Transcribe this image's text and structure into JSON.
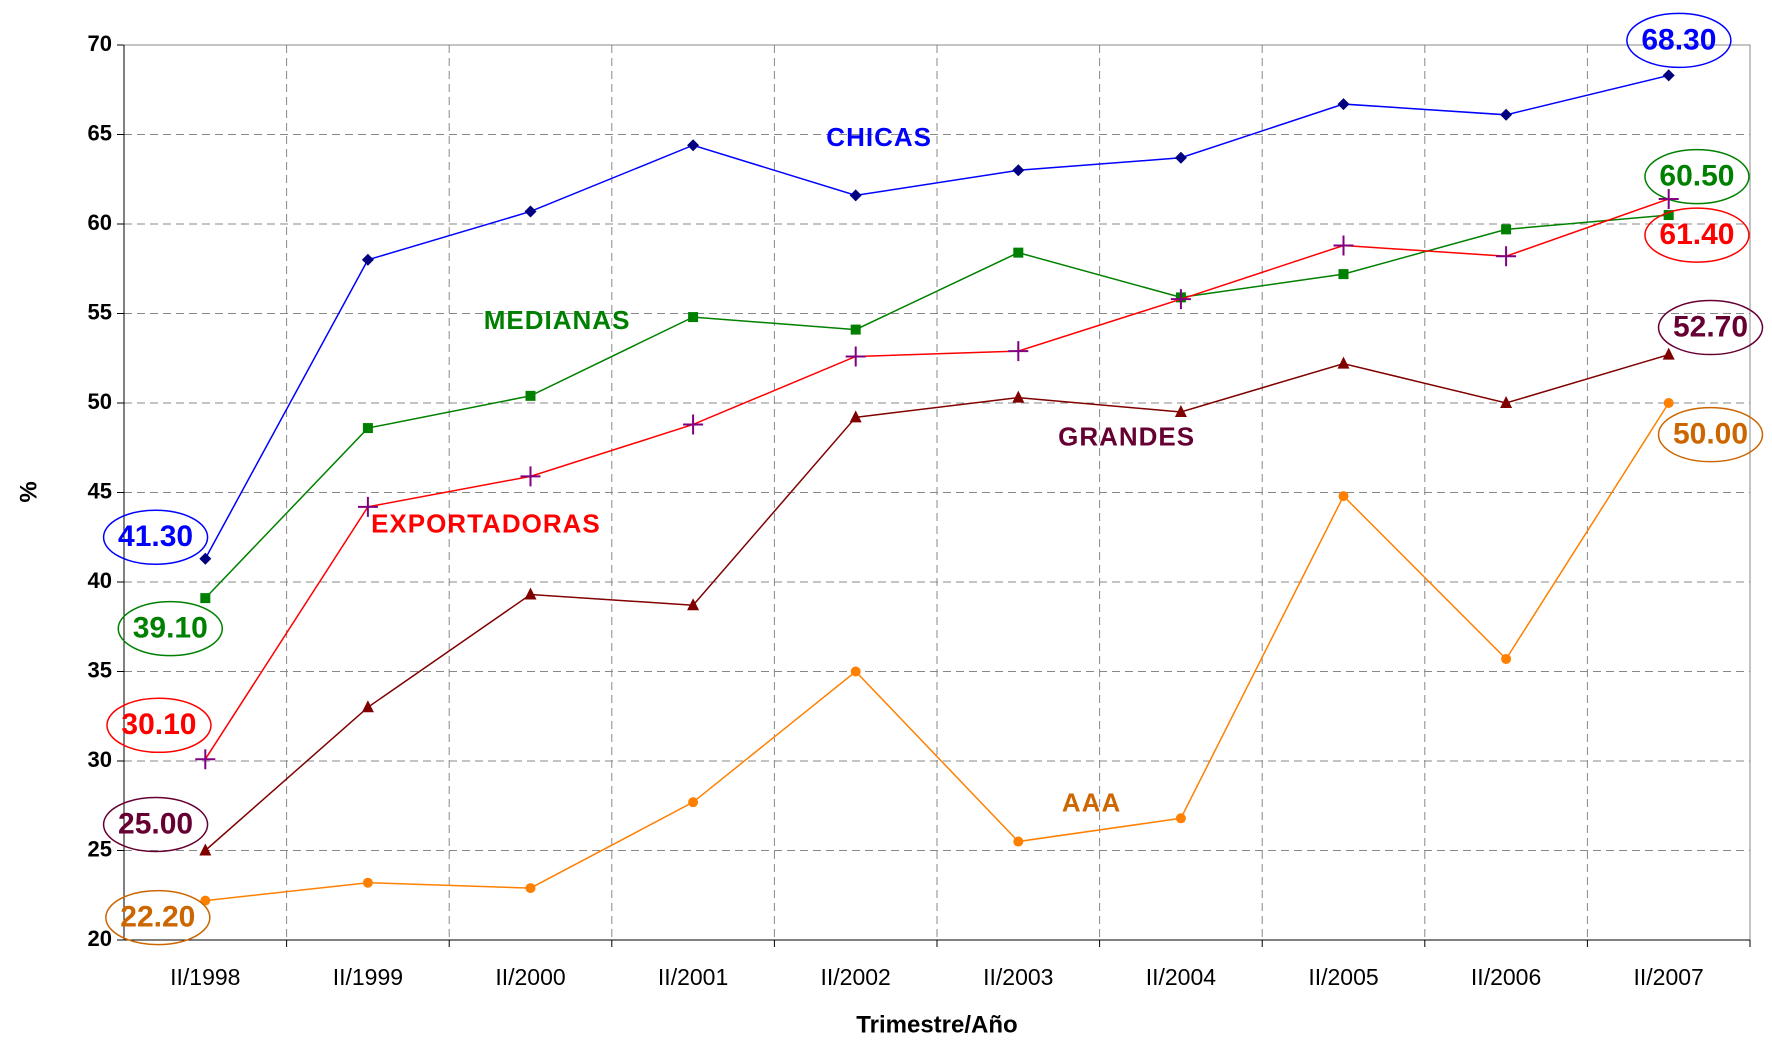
{
  "chart_data": {
    "type": "line",
    "x_label": "Trimestre/Año",
    "y_label": "%",
    "categories": [
      "II/1998",
      "II/1999",
      "II/2000",
      "II/2001",
      "II/2002",
      "II/2003",
      "II/2004",
      "II/2005",
      "II/2006",
      "II/2007"
    ],
    "ylim": [
      20,
      70
    ],
    "yticks": [
      20,
      25,
      30,
      35,
      40,
      45,
      50,
      55,
      60,
      65,
      70
    ],
    "grid": true,
    "series": [
      {
        "name": "CHICAS",
        "color": "#0000ff",
        "marker_color": "#000080",
        "marker": "diamond",
        "label_color": "#0000ff",
        "values": [
          41.3,
          58.0,
          60.7,
          64.4,
          61.6,
          63.0,
          63.7,
          66.7,
          66.1,
          68.3
        ],
        "value_labels": [
          "41.30",
          null,
          null,
          null,
          null,
          null,
          null,
          null,
          null,
          "68.30"
        ]
      },
      {
        "name": "MEDIANAS",
        "color": "#008000",
        "marker_color": "#008000",
        "marker": "square",
        "label_color": "#008000",
        "values": [
          39.1,
          48.6,
          50.4,
          54.8,
          54.1,
          58.4,
          55.9,
          57.2,
          59.7,
          60.5
        ],
        "value_labels": [
          "39.10",
          null,
          null,
          null,
          null,
          null,
          null,
          null,
          null,
          "60.50"
        ]
      },
      {
        "name": "EXPORTADORAS",
        "color": "#ff0000",
        "marker_color": "#800080",
        "marker": "plus",
        "label_color": "#ff0000",
        "values": [
          30.1,
          44.2,
          45.9,
          48.8,
          52.6,
          52.9,
          55.8,
          58.8,
          58.2,
          61.4
        ],
        "value_labels": [
          "30.10",
          null,
          null,
          null,
          null,
          null,
          null,
          null,
          null,
          "61.40"
        ]
      },
      {
        "name": "GRANDES",
        "color": "#800000",
        "marker_color": "#800000",
        "marker": "triangle",
        "label_color": "#660033",
        "values": [
          25.0,
          33.0,
          39.3,
          38.7,
          49.2,
          50.3,
          49.5,
          52.2,
          50.0,
          52.7
        ],
        "value_labels": [
          "25.00",
          null,
          null,
          null,
          null,
          null,
          null,
          null,
          null,
          "52.70"
        ]
      },
      {
        "name": "AAA",
        "color": "#ff8000",
        "marker_color": "#ff8000",
        "marker": "circle",
        "label_color": "#cc6600",
        "values": [
          22.2,
          23.2,
          22.9,
          27.7,
          35.0,
          25.5,
          26.8,
          44.8,
          35.7,
          50.0
        ],
        "value_labels": [
          "22.20",
          null,
          null,
          null,
          null,
          null,
          null,
          null,
          null,
          "50.00"
        ]
      }
    ]
  }
}
